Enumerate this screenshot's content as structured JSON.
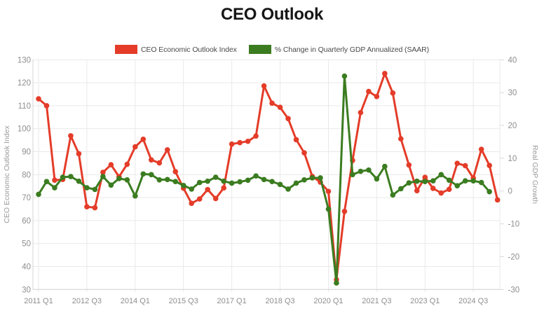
{
  "chart_data": {
    "type": "line",
    "title": "CEO Outlook",
    "x_tick_labels": [
      "2011 Q1",
      "2012 Q3",
      "2014 Q1",
      "2015 Q3",
      "2017 Q1",
      "2018 Q3",
      "2020 Q1",
      "2021 Q3",
      "2023 Q1",
      "2024 Q3"
    ],
    "quarters": [
      "2011 Q1",
      "2011 Q2",
      "2011 Q3",
      "2011 Q4",
      "2012 Q1",
      "2012 Q2",
      "2012 Q3",
      "2012 Q4",
      "2013 Q1",
      "2013 Q2",
      "2013 Q3",
      "2013 Q4",
      "2014 Q1",
      "2014 Q2",
      "2014 Q3",
      "2014 Q4",
      "2015 Q1",
      "2015 Q2",
      "2015 Q3",
      "2015 Q4",
      "2016 Q1",
      "2016 Q2",
      "2016 Q3",
      "2016 Q4",
      "2017 Q1",
      "2017 Q2",
      "2017 Q3",
      "2017 Q4",
      "2018 Q1",
      "2018 Q2",
      "2018 Q3",
      "2018 Q4",
      "2019 Q1",
      "2019 Q2",
      "2019 Q3",
      "2019 Q4",
      "2020 Q1",
      "2020 Q2",
      "2020 Q3",
      "2020 Q4",
      "2021 Q1",
      "2021 Q2",
      "2021 Q3",
      "2021 Q4",
      "2022 Q1",
      "2022 Q2",
      "2022 Q3",
      "2022 Q4",
      "2023 Q1",
      "2023 Q2",
      "2023 Q3",
      "2023 Q4",
      "2024 Q1",
      "2024 Q2",
      "2024 Q3",
      "2024 Q4",
      "2025 Q1",
      "2025 Q2"
    ],
    "series": [
      {
        "name": "CEO Economic Outlook Index",
        "color": "#e43c29",
        "axis": "left",
        "values": [
          113,
          110,
          77.6,
          77.9,
          96.9,
          89.1,
          66,
          65.6,
          81,
          84.3,
          79.1,
          84.5,
          92.1,
          95.4,
          86.4,
          85.1,
          90.8,
          81.3,
          74.1,
          67.5,
          69.4,
          73.5,
          69.6,
          74.2,
          93.3,
          93.9,
          94.5,
          96.8,
          118.6,
          111.1,
          109.3,
          104.4,
          95.2,
          89.5,
          79.2,
          76.7,
          72.7,
          34.3,
          64,
          86.2,
          107,
          116.2,
          114,
          124,
          115.5,
          95.6,
          84.2,
          73,
          78.8,
          74,
          72,
          73.6,
          84.9,
          83.9,
          78.5,
          91,
          84,
          69
        ]
      },
      {
        "name": "% Change in Quarterly GDP Annualized (SAAR)",
        "color": "#3b7c20",
        "axis": "right",
        "values": [
          -1,
          2.9,
          1,
          4.2,
          4.4,
          3,
          1,
          0.5,
          4.4,
          1.8,
          3.8,
          3.4,
          -1.5,
          5.2,
          5,
          3.4,
          3.5,
          2.9,
          1.7,
          0.6,
          2.6,
          3,
          4.2,
          3,
          2.4,
          2.8,
          3.3,
          4.6,
          3.5,
          2.9,
          2,
          0.6,
          2.4,
          3.4,
          4,
          4,
          -5.5,
          -28,
          35,
          5,
          6,
          6.4,
          3.7,
          7.5,
          -1.2,
          0.7,
          2.5,
          3,
          2.9,
          3.1,
          5,
          3.3,
          1.6,
          3.1,
          3.1,
          2.6,
          -0.2,
          null
        ]
      }
    ],
    "left_axis": {
      "title": "CEO Economic Outlook Index",
      "min": 30,
      "max": 130,
      "ticks": [
        130,
        120,
        110,
        100,
        90,
        80,
        70,
        60,
        50,
        40,
        30
      ]
    },
    "right_axis": {
      "title": "Real GDP Growth",
      "min": -30,
      "max": 40,
      "ticks": [
        40,
        30,
        20,
        10,
        0,
        -10,
        -20,
        -30
      ]
    },
    "grid": true,
    "legend_position": "top"
  }
}
